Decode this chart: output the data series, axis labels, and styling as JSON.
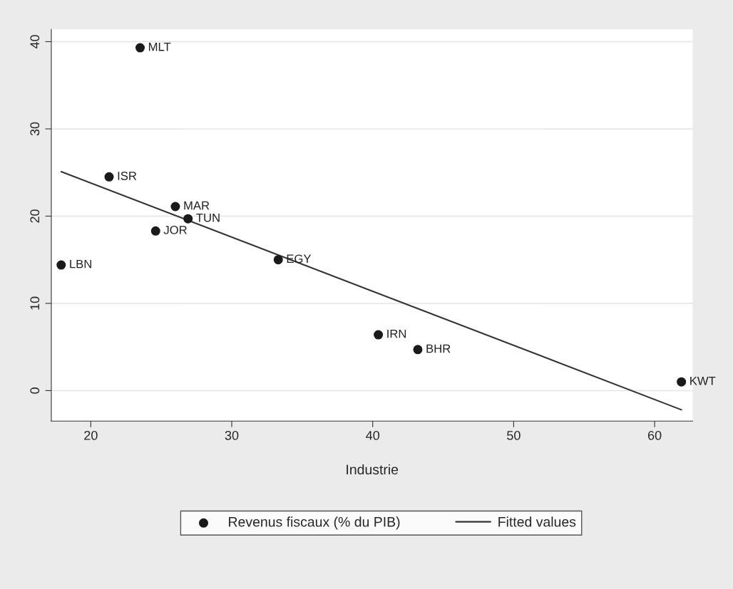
{
  "chart_data": {
    "type": "scatter",
    "xlabel": "Industrie",
    "series": [
      {
        "name": "Revenus fiscaux (% du PIB)",
        "color": "#1a1a1a",
        "marker": "circle",
        "x": [
          23.5,
          21.3,
          26.0,
          26.9,
          24.6,
          17.9,
          33.3,
          40.4,
          43.2,
          61.9
        ],
        "values": [
          39.3,
          24.5,
          21.1,
          19.7,
          18.3,
          14.4,
          15.0,
          6.4,
          4.7,
          1.0
        ]
      },
      {
        "name": "Fitted values",
        "type": "line",
        "color": "#333333",
        "line_style": "solid",
        "x": [
          17.9,
          61.9
        ],
        "values": [
          25.1,
          -2.2
        ]
      }
    ],
    "annotations": [
      {
        "text": "MLT",
        "x": 23.5,
        "y": 39.3
      },
      {
        "text": "ISR",
        "x": 21.3,
        "y": 24.5
      },
      {
        "text": "MAR",
        "x": 26.0,
        "y": 21.1
      },
      {
        "text": "TUN",
        "x": 26.9,
        "y": 19.7
      },
      {
        "text": "JOR",
        "x": 24.6,
        "y": 18.3
      },
      {
        "text": "LBN",
        "x": 17.9,
        "y": 14.4
      },
      {
        "text": "EGY",
        "x": 33.3,
        "y": 15.0
      },
      {
        "text": "IRN",
        "x": 40.4,
        "y": 6.4
      },
      {
        "text": "BHR",
        "x": 43.2,
        "y": 4.7
      },
      {
        "text": "KWT",
        "x": 61.9,
        "y": 1.0
      }
    ],
    "xlim": [
      17.2,
      62.7
    ],
    "ylim": [
      -3.5,
      41.4
    ],
    "xticks": [
      20,
      30,
      40,
      50,
      60
    ],
    "yticks": [
      0,
      10,
      20,
      30,
      40
    ],
    "grid": "y",
    "legend": "bottom"
  }
}
